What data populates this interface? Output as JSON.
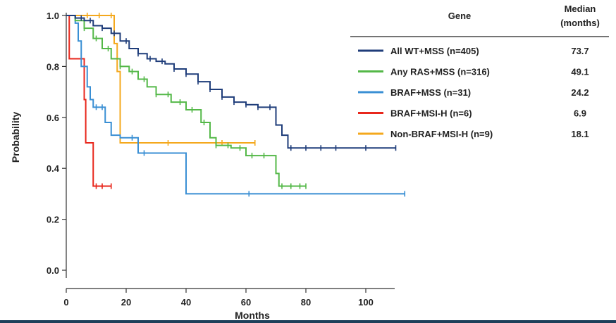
{
  "chart_data": {
    "type": "line",
    "xlabel": "Months",
    "ylabel": "Probability",
    "xlim": [
      0,
      115
    ],
    "ylim": [
      0,
      1.0
    ],
    "x_ticks": [
      "0",
      "20",
      "40",
      "60",
      "80",
      "100"
    ],
    "y_ticks": [
      "0.0",
      "0.2",
      "0.4",
      "0.6",
      "0.8",
      "1.0"
    ],
    "grid": false,
    "legend_placement": "top-right",
    "legend_headers": {
      "gene": "Gene",
      "median_line1": "Median",
      "median_line2": "(months)"
    },
    "series": [
      {
        "name": "All WT+MSS (n=405)",
        "median": "73.7",
        "color": "#1f3d7a",
        "points": [
          [
            0,
            1.0
          ],
          [
            3,
            0.99
          ],
          [
            6,
            0.98
          ],
          [
            9,
            0.96
          ],
          [
            12,
            0.95
          ],
          [
            15,
            0.93
          ],
          [
            18,
            0.9
          ],
          [
            21,
            0.87
          ],
          [
            24,
            0.85
          ],
          [
            27,
            0.83
          ],
          [
            30,
            0.82
          ],
          [
            33,
            0.81
          ],
          [
            36,
            0.79
          ],
          [
            40,
            0.77
          ],
          [
            44,
            0.74
          ],
          [
            48,
            0.71
          ],
          [
            52,
            0.68
          ],
          [
            56,
            0.66
          ],
          [
            60,
            0.65
          ],
          [
            64,
            0.64
          ],
          [
            69,
            0.64
          ],
          [
            70,
            0.57
          ],
          [
            72,
            0.53
          ],
          [
            74,
            0.48
          ],
          [
            110,
            0.48
          ]
        ],
        "censor_x": [
          5,
          8,
          12,
          16,
          20,
          24,
          28,
          32,
          36,
          40,
          44,
          48,
          52,
          56,
          60,
          64,
          68,
          75,
          80,
          85,
          90,
          100,
          110
        ]
      },
      {
        "name": "Any RAS+MSS (n=316)",
        "median": "49.1",
        "color": "#54b848",
        "points": [
          [
            0,
            1.0
          ],
          [
            3,
            0.98
          ],
          [
            6,
            0.95
          ],
          [
            9,
            0.91
          ],
          [
            12,
            0.87
          ],
          [
            15,
            0.83
          ],
          [
            18,
            0.8
          ],
          [
            21,
            0.78
          ],
          [
            24,
            0.75
          ],
          [
            27,
            0.72
          ],
          [
            30,
            0.69
          ],
          [
            35,
            0.66
          ],
          [
            40,
            0.63
          ],
          [
            45,
            0.58
          ],
          [
            48,
            0.52
          ],
          [
            50,
            0.49
          ],
          [
            55,
            0.48
          ],
          [
            60,
            0.45
          ],
          [
            67,
            0.45
          ],
          [
            70,
            0.38
          ],
          [
            71,
            0.33
          ],
          [
            80,
            0.33
          ]
        ],
        "censor_x": [
          6,
          10,
          14,
          18,
          22,
          26,
          30,
          34,
          38,
          42,
          46,
          50,
          54,
          58,
          62,
          66,
          72,
          75,
          78,
          80
        ]
      },
      {
        "name": "BRAF+MSS (n=31)",
        "median": "24.2",
        "color": "#3a8fd4",
        "points": [
          [
            0,
            1.0
          ],
          [
            3,
            0.97
          ],
          [
            4,
            0.9
          ],
          [
            5,
            0.8
          ],
          [
            7,
            0.72
          ],
          [
            8,
            0.67
          ],
          [
            9,
            0.64
          ],
          [
            13,
            0.58
          ],
          [
            15,
            0.53
          ],
          [
            18,
            0.52
          ],
          [
            23,
            0.52
          ],
          [
            24,
            0.46
          ],
          [
            40,
            0.46
          ],
          [
            40,
            0.3
          ],
          [
            113,
            0.3
          ]
        ],
        "censor_x": [
          10,
          12,
          22,
          26,
          61,
          113
        ]
      },
      {
        "name": "BRAF+MSI-H (n=6)",
        "median": "6.9",
        "color": "#e8271c",
        "points": [
          [
            0,
            1.0
          ],
          [
            1,
            0.83
          ],
          [
            6,
            0.83
          ],
          [
            6,
            0.67
          ],
          [
            6.5,
            0.5
          ],
          [
            8,
            0.5
          ],
          [
            9,
            0.33
          ],
          [
            15,
            0.33
          ]
        ],
        "censor_x": [
          10,
          12,
          15
        ]
      },
      {
        "name": "Non-BRAF+MSI-H (n=9)",
        "median": "18.1",
        "color": "#f4a81d",
        "points": [
          [
            0,
            1.0
          ],
          [
            15,
            1.0
          ],
          [
            16,
            0.89
          ],
          [
            17,
            0.78
          ],
          [
            18,
            0.5
          ],
          [
            63,
            0.5
          ]
        ],
        "censor_x": [
          7,
          11,
          15,
          34,
          52,
          63
        ]
      }
    ]
  }
}
